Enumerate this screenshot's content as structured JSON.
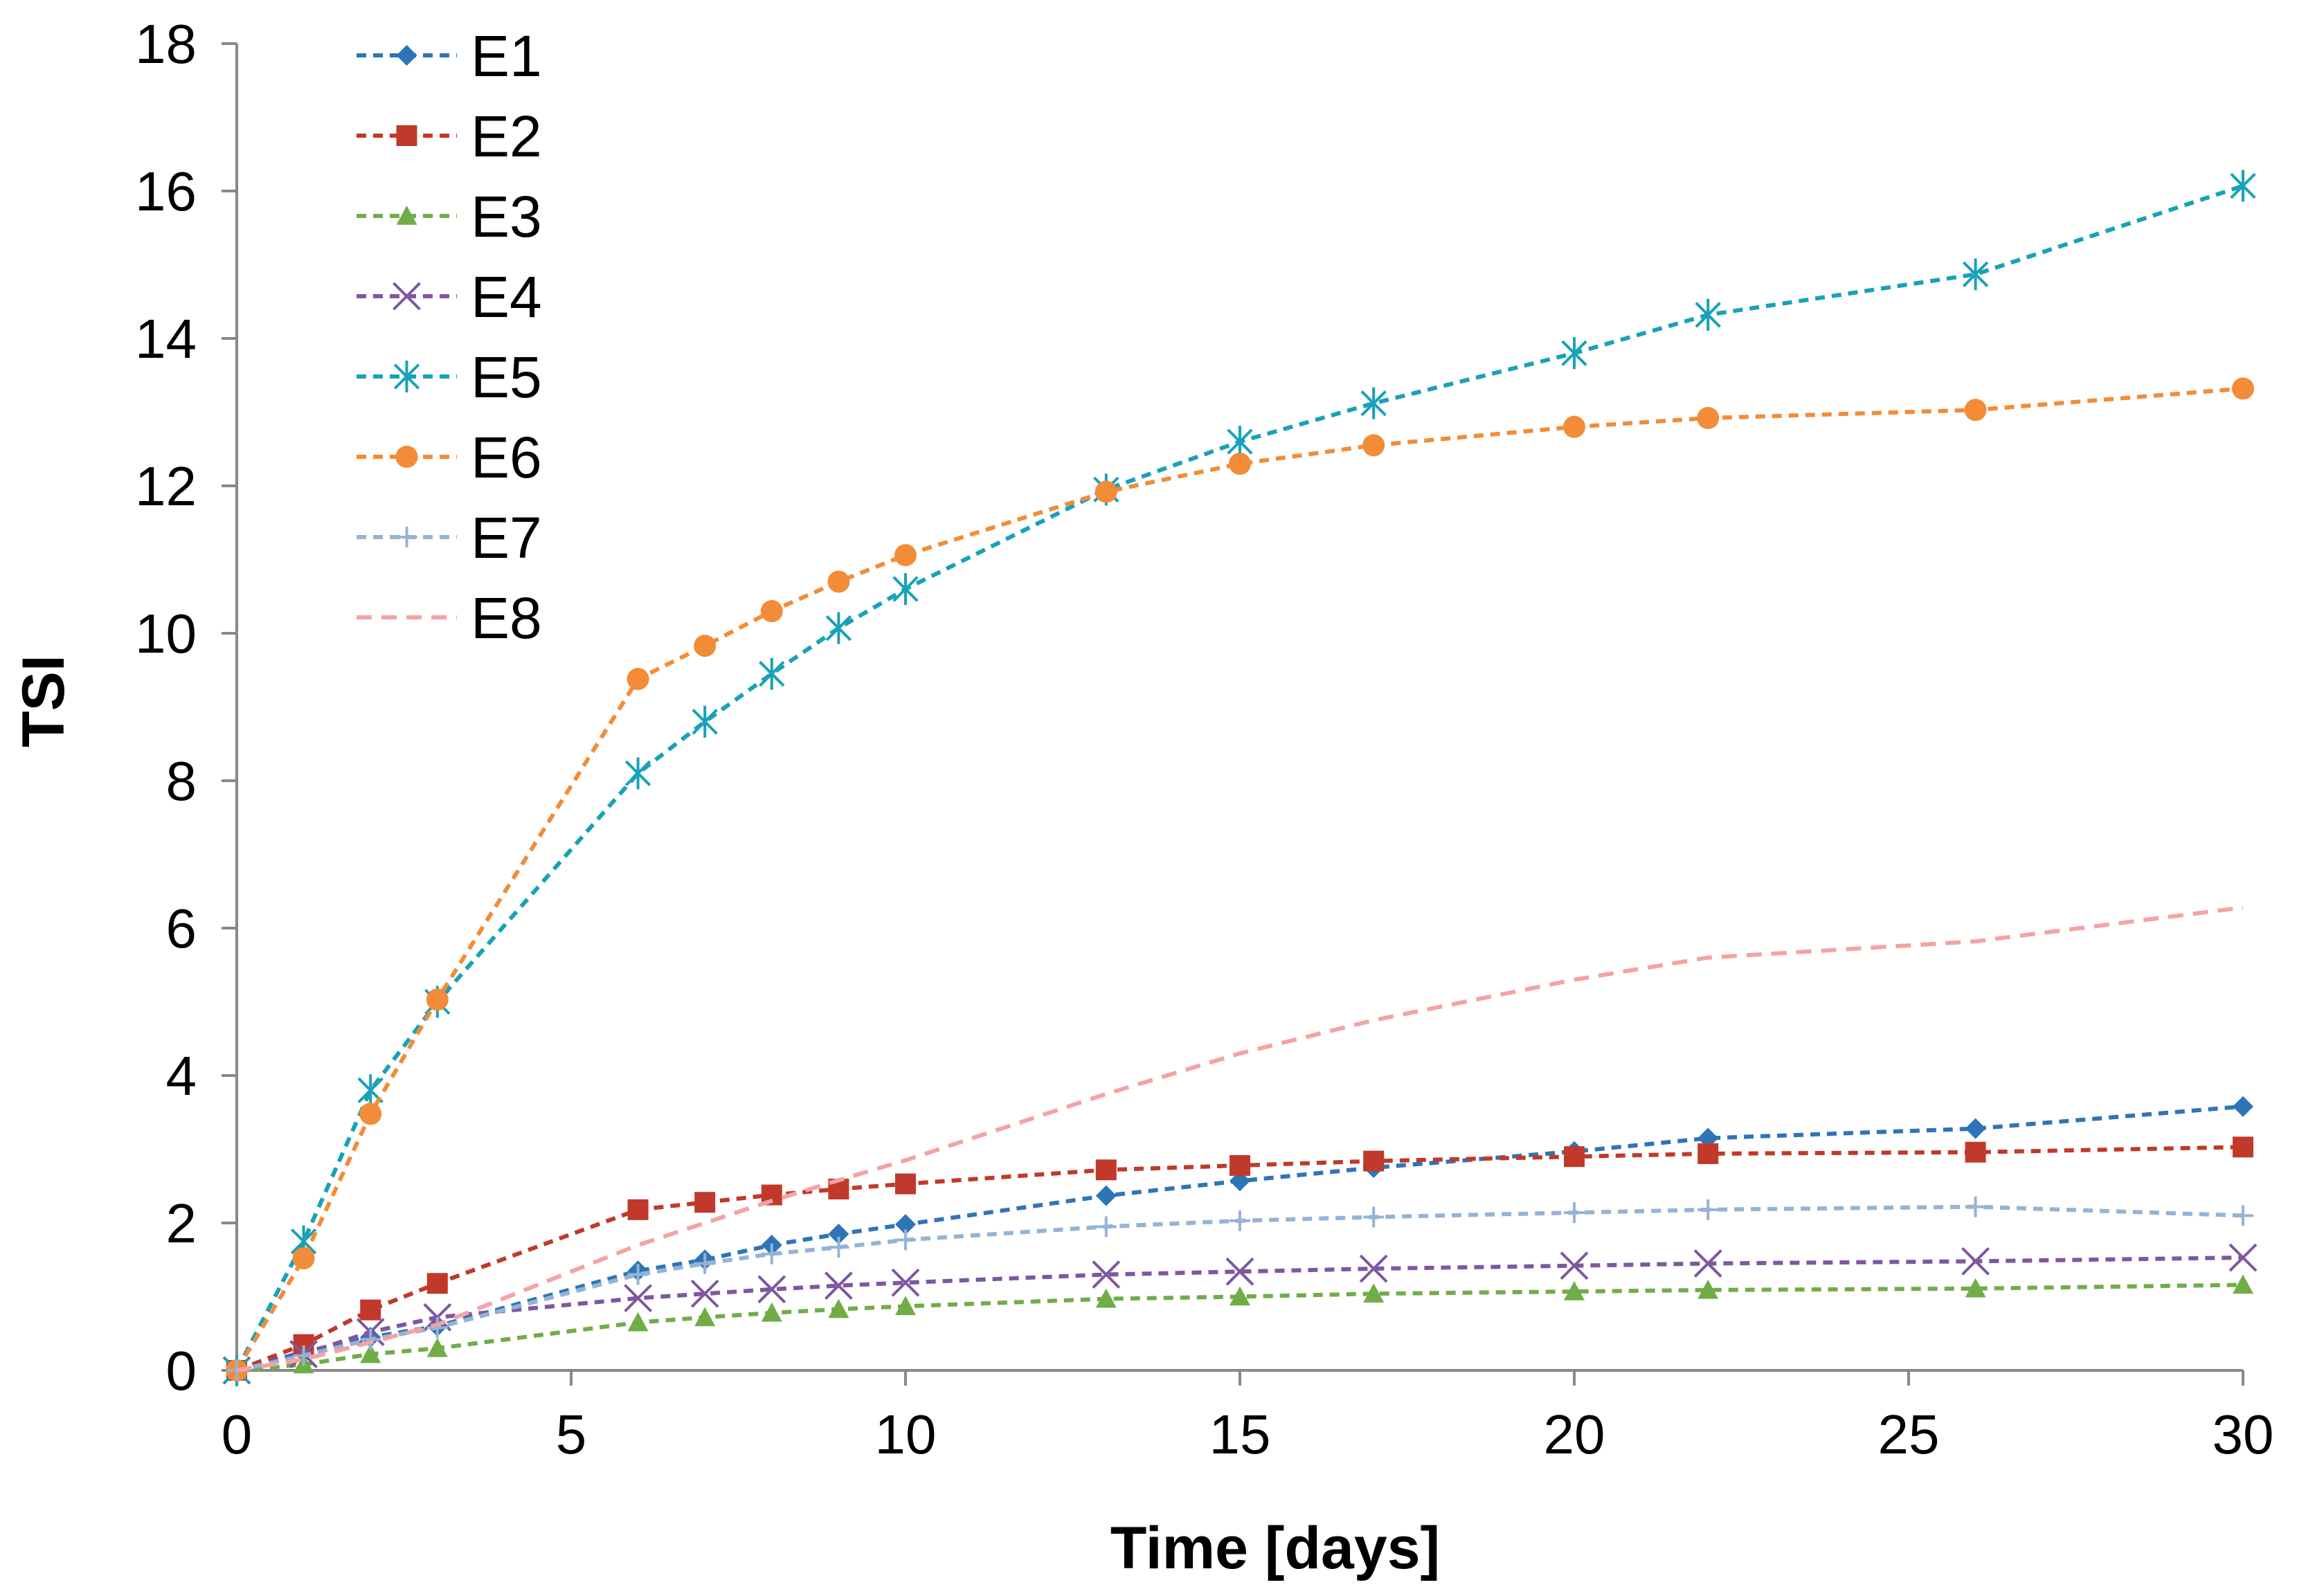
{
  "chart_data": {
    "type": "line",
    "title": "",
    "xlabel": "Time [days]",
    "ylabel": "TSI",
    "xlim": [
      0,
      30
    ],
    "ylim": [
      0,
      18
    ],
    "xticks": [
      0,
      5,
      10,
      15,
      20,
      25,
      30
    ],
    "yticks": [
      0,
      2,
      4,
      6,
      8,
      10,
      12,
      14,
      16,
      18
    ],
    "grid": false,
    "legend_position": "top-left",
    "series": [
      {
        "name": "E1",
        "color": "#2E75B6",
        "marker": "diamond",
        "line": "dashed",
        "x": [
          0,
          1,
          2,
          3,
          6,
          7,
          8,
          9,
          10,
          13,
          15,
          17,
          20,
          22,
          26,
          30
        ],
        "y": [
          0,
          0.25,
          0.45,
          0.6,
          1.35,
          1.5,
          1.7,
          1.85,
          1.98,
          2.37,
          2.57,
          2.75,
          2.97,
          3.15,
          3.28,
          3.58
        ]
      },
      {
        "name": "E2",
        "color": "#C0392B",
        "marker": "square",
        "line": "dashed",
        "x": [
          0,
          1,
          2,
          3,
          6,
          7,
          8,
          9,
          10,
          13,
          15,
          17,
          20,
          22,
          26,
          30
        ],
        "y": [
          0,
          0.35,
          0.82,
          1.18,
          2.18,
          2.28,
          2.38,
          2.46,
          2.53,
          2.72,
          2.78,
          2.84,
          2.9,
          2.94,
          2.96,
          3.03
        ]
      },
      {
        "name": "E3",
        "color": "#70AD47",
        "marker": "triangle",
        "line": "dashed",
        "x": [
          0,
          1,
          2,
          3,
          6,
          7,
          8,
          9,
          10,
          13,
          15,
          17,
          20,
          22,
          26,
          30
        ],
        "y": [
          0,
          0.08,
          0.22,
          0.3,
          0.65,
          0.72,
          0.78,
          0.83,
          0.87,
          0.97,
          1.0,
          1.04,
          1.07,
          1.09,
          1.11,
          1.16
        ]
      },
      {
        "name": "E4",
        "color": "#7E57A0",
        "marker": "x",
        "line": "dashed",
        "x": [
          0,
          1,
          2,
          3,
          6,
          7,
          8,
          9,
          10,
          13,
          15,
          17,
          20,
          22,
          26,
          30
        ],
        "y": [
          0,
          0.22,
          0.52,
          0.72,
          0.98,
          1.04,
          1.1,
          1.15,
          1.19,
          1.3,
          1.34,
          1.38,
          1.42,
          1.45,
          1.48,
          1.53
        ]
      },
      {
        "name": "E5",
        "color": "#17A2B8",
        "marker": "asterisk",
        "line": "dashed",
        "x": [
          0,
          1,
          2,
          3,
          6,
          7,
          8,
          9,
          10,
          13,
          15,
          17,
          20,
          22,
          26,
          30
        ],
        "y": [
          0,
          1.75,
          3.8,
          5.0,
          8.1,
          8.8,
          9.45,
          10.07,
          10.6,
          11.95,
          12.6,
          13.12,
          13.8,
          14.32,
          14.87,
          16.07
        ]
      },
      {
        "name": "E6",
        "color": "#F28C38",
        "marker": "circle",
        "line": "dashed",
        "x": [
          0,
          1,
          2,
          3,
          6,
          7,
          8,
          9,
          10,
          13,
          15,
          17,
          20,
          22,
          26,
          30
        ],
        "y": [
          0,
          1.52,
          3.48,
          5.03,
          9.38,
          9.83,
          10.3,
          10.7,
          11.06,
          11.92,
          12.3,
          12.55,
          12.8,
          12.92,
          13.03,
          13.32
        ]
      },
      {
        "name": "E7",
        "color": "#95B3D7",
        "marker": "plus",
        "line": "dashed",
        "x": [
          0,
          1,
          2,
          3,
          6,
          7,
          8,
          9,
          10,
          13,
          15,
          17,
          20,
          22,
          26,
          30
        ],
        "y": [
          0,
          0.2,
          0.42,
          0.58,
          1.3,
          1.45,
          1.58,
          1.67,
          1.77,
          1.95,
          2.03,
          2.08,
          2.14,
          2.18,
          2.22,
          2.1
        ]
      },
      {
        "name": "E8",
        "color": "#F4A3A3",
        "marker": "none",
        "line": "dashed",
        "x": [
          0,
          1,
          2,
          3,
          6,
          7,
          8,
          9,
          10,
          13,
          15,
          17,
          20,
          22,
          26,
          30
        ],
        "y": [
          0,
          0.15,
          0.38,
          0.62,
          1.7,
          2.0,
          2.3,
          2.58,
          2.85,
          3.75,
          4.3,
          4.75,
          5.3,
          5.6,
          5.82,
          6.28
        ]
      }
    ]
  }
}
